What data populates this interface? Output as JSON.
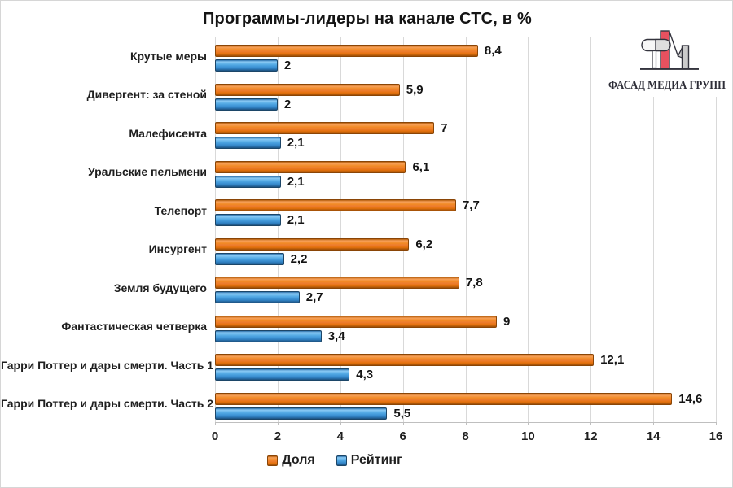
{
  "title": "Программы-лидеры на канале СТС, в %",
  "logo": {
    "text": "ФАСАД МЕДИА ГРУПП"
  },
  "legend": {
    "items": [
      "Доля",
      "Рейтинг"
    ]
  },
  "chart_data": {
    "type": "bar",
    "orientation": "horizontal",
    "title": "Программы-лидеры на канале СТС, в %",
    "categories": [
      "Крутые меры",
      "Дивергент: за стеной",
      "Малефисента",
      "Уральские пельмени",
      "Телепорт",
      "Инсургент",
      "Земля будущего",
      "Фантастическая четверка",
      "Гарри Поттер и дары смерти. Часть 1",
      "Гарри Поттер и дары смерти. Часть 2"
    ],
    "series": [
      {
        "name": "Доля",
        "color": "#ED7D31",
        "values": [
          8.4,
          5.9,
          7,
          6.1,
          7.7,
          6.2,
          7.8,
          9,
          12.1,
          14.6
        ],
        "labels": [
          "8,4",
          "5,9",
          "7",
          "6,1",
          "7,7",
          "6,2",
          "7,8",
          "9",
          "12,1",
          "14,6"
        ]
      },
      {
        "name": "Рейтинг",
        "color": "#4DA5E3",
        "values": [
          2,
          2,
          2.1,
          2.1,
          2.1,
          2.2,
          2.7,
          3.4,
          4.3,
          5.5
        ],
        "labels": [
          "2",
          "2",
          "2,1",
          "2,1",
          "2,1",
          "2,2",
          "2,7",
          "3,4",
          "4,3",
          "5,5"
        ]
      }
    ],
    "xlabel": "",
    "ylabel": "",
    "xlim": [
      0,
      16
    ],
    "xticks": [
      0,
      2,
      4,
      6,
      8,
      10,
      12,
      14,
      16
    ],
    "grid": "vertical",
    "gridline_color": "#d9d9d9",
    "legend_position": "bottom"
  }
}
